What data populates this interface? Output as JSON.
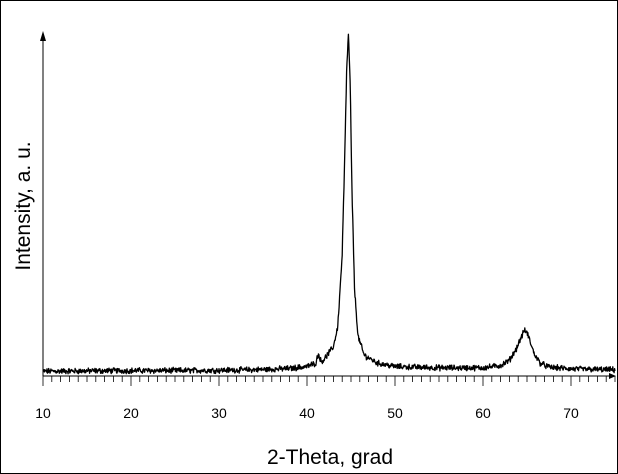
{
  "chart_data": {
    "type": "line",
    "xlabel": "2-Theta, grad",
    "ylabel": "Intensity, a. u.",
    "xlim": [
      10,
      75
    ],
    "ylim": [
      0,
      100
    ],
    "x_ticks": [
      10,
      20,
      30,
      40,
      50,
      60,
      70
    ],
    "x_minor_step": 1,
    "grid": false,
    "y_tick_labels": false,
    "colors": {
      "line": "#000000",
      "axis": "#000000"
    },
    "series": [
      {
        "x": [
          10,
          15,
          20,
          25,
          30,
          35,
          38,
          40,
          41,
          41.3,
          41.6,
          42,
          43,
          43.5,
          44,
          44.3,
          44.5,
          44.7,
          44.9,
          45.1,
          45.4,
          45.8,
          46.5,
          48,
          50,
          55,
          60,
          62,
          63,
          63.8,
          64.3,
          64.7,
          65,
          65.3,
          65.8,
          66.5,
          67.5,
          70,
          75
        ],
        "y": [
          0.8,
          0.9,
          1.0,
          1.0,
          1.1,
          1.3,
          1.6,
          2.2,
          3.2,
          6.0,
          3.6,
          4.5,
          8.0,
          14.0,
          35.0,
          65.0,
          88.0,
          100.0,
          86.0,
          55.0,
          25.0,
          11.0,
          5.5,
          3.2,
          2.2,
          1.8,
          1.8,
          2.5,
          4.0,
          7.5,
          10.5,
          12.8,
          12.2,
          10.0,
          6.0,
          3.2,
          2.0,
          1.5,
          1.2
        ]
      }
    ]
  }
}
